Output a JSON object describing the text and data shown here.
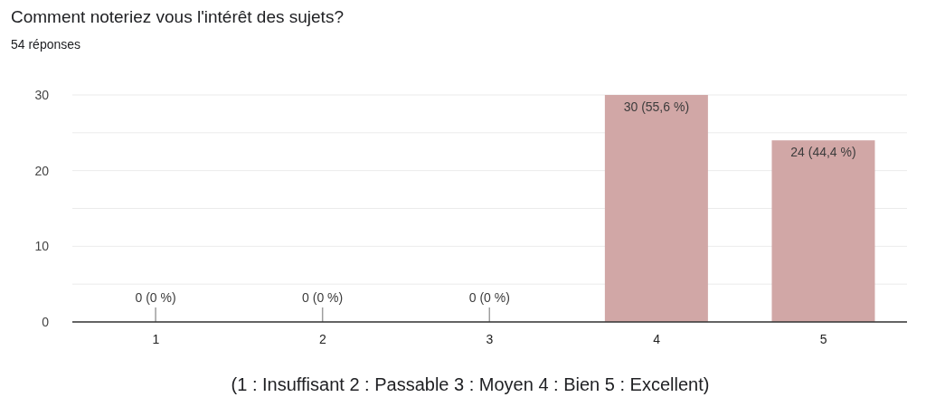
{
  "chart_data": {
    "type": "bar",
    "title": "Comment noteriez vous l'intérêt des sujets?",
    "subtitle": "54 réponses",
    "xlabel": "(1 : Insuffisant 2 : Passable 3 : Moyen 4 : Bien 5 : Excellent)",
    "categories": [
      "1",
      "2",
      "3",
      "4",
      "5"
    ],
    "values": [
      0,
      0,
      0,
      30,
      24
    ],
    "color": "#d1a7a6",
    "value_labels": [
      "0 (0 %)",
      "0 (0 %)",
      "0 (0 %)",
      "30 (55,6 %)",
      "24 (44,4 %)"
    ],
    "ylim": [
      0,
      30
    ],
    "yticks": [
      0,
      {
        "value": 5,
        "label": null
      },
      10,
      {
        "value": 15,
        "label": null
      },
      20,
      {
        "value": 25,
        "label": null
      },
      30
    ],
    "grid": "y"
  }
}
